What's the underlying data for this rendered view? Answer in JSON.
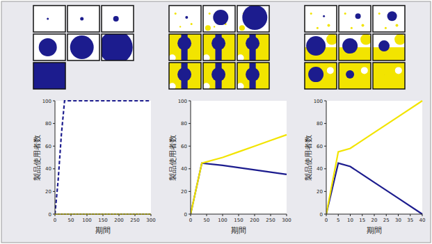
{
  "chart_data": [
    {
      "type": "line",
      "x_label": "期間",
      "y_label": "製品使用者数",
      "x": [
        0,
        10,
        20,
        30,
        50,
        100,
        150,
        200,
        250,
        300
      ],
      "xlim": [
        0,
        300
      ],
      "xticks": [
        0,
        50,
        100,
        150,
        200,
        250,
        300
      ],
      "ylim": [
        0,
        100
      ],
      "yticks": [
        0,
        20,
        40,
        60,
        80,
        100
      ],
      "series": [
        {
          "color": "#1c1c8e",
          "line_style": "dashed",
          "values": [
            0,
            30,
            70,
            100,
            100,
            100,
            100,
            100,
            100,
            100
          ]
        },
        {
          "color": "#f2e400",
          "line_style": "dotted",
          "values": [
            0,
            0,
            0,
            0,
            0,
            0,
            0,
            0,
            0,
            0
          ]
        }
      ]
    },
    {
      "type": "line",
      "x_label": "期間",
      "y_label": "製品使用者数",
      "x": [
        0,
        35,
        100,
        150,
        200,
        250,
        300
      ],
      "xlim": [
        0,
        300
      ],
      "xticks": [
        0,
        50,
        100,
        150,
        200,
        250,
        300
      ],
      "ylim": [
        0,
        100
      ],
      "yticks": [
        0,
        20,
        40,
        60,
        80,
        100
      ],
      "series": [
        {
          "color": "#1c1c8e",
          "line_style": "solid",
          "values": [
            0,
            45,
            43,
            41,
            39,
            37,
            35
          ]
        },
        {
          "color": "#f2e400",
          "line_style": "solid",
          "values": [
            0,
            45,
            50,
            55,
            60,
            65,
            70
          ]
        }
      ]
    },
    {
      "type": "line",
      "x_label": "期間",
      "y_label": "製品使用者数",
      "x": [
        0,
        5,
        10,
        20,
        30,
        40
      ],
      "xlim": [
        0,
        40
      ],
      "xticks": [
        0,
        5,
        10,
        15,
        20,
        25,
        30,
        35,
        40
      ],
      "ylim": [
        0,
        100
      ],
      "yticks": [
        0,
        20,
        40,
        60,
        80,
        100
      ],
      "series": [
        {
          "color": "#1c1c8e",
          "line_style": "solid",
          "values": [
            0,
            45,
            42,
            28,
            14,
            0
          ]
        },
        {
          "color": "#f2e400",
          "line_style": "solid",
          "values": [
            0,
            55,
            58,
            72,
            86,
            100
          ]
        }
      ]
    }
  ]
}
